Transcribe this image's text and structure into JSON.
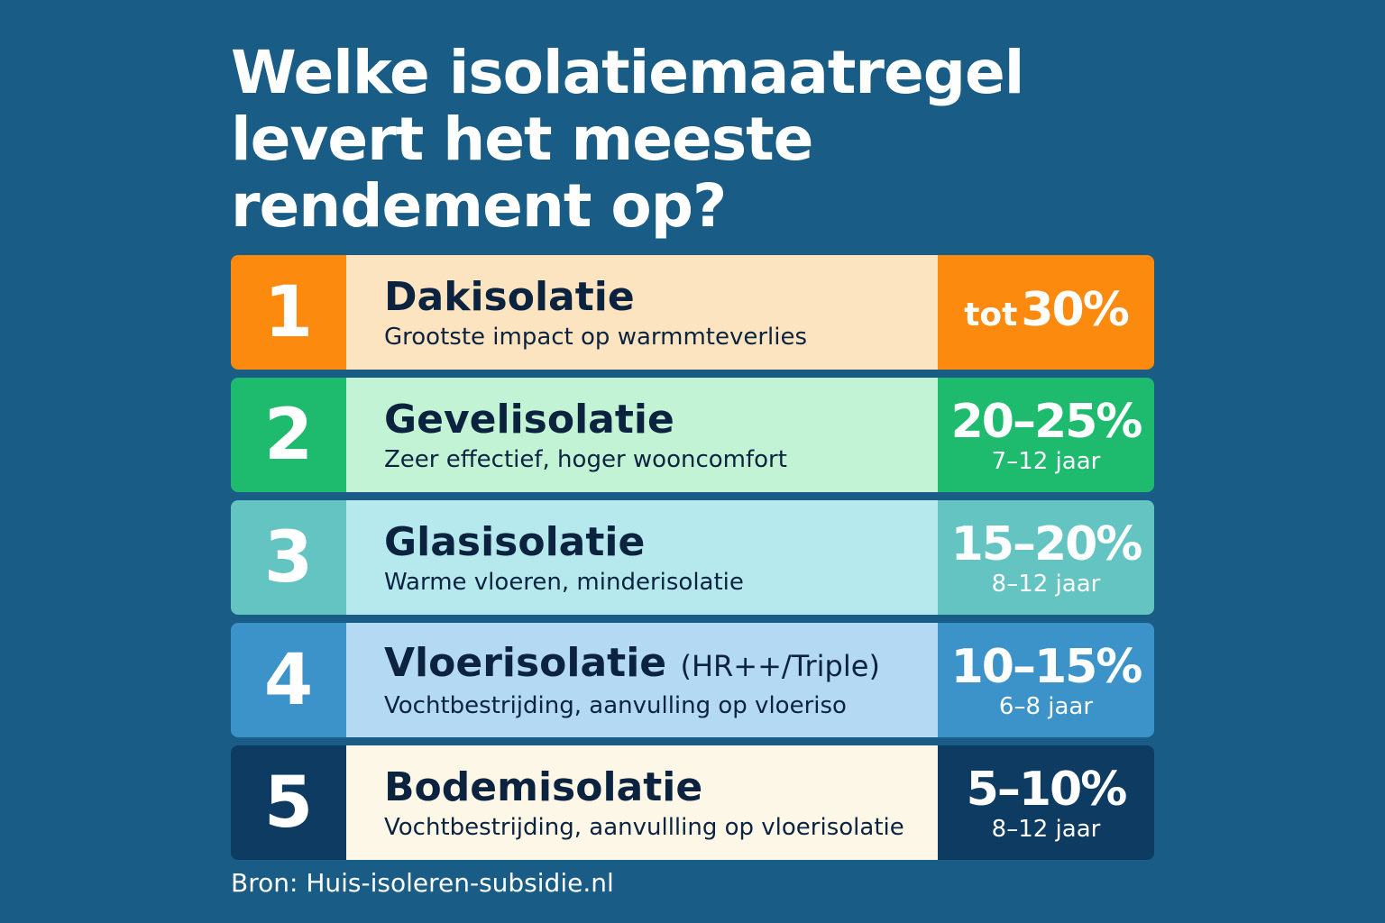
{
  "title": {
    "line1": "Welke isolatiemaatregel",
    "line2": "levert het meeste",
    "line3": "rendement op?"
  },
  "colors": {
    "background": "#195c86",
    "text_dark": "#0c2340",
    "row1_accent": "#fb8a0e",
    "row1_body": "#fde4c0",
    "row2_accent": "#1ebb6e",
    "row2_body": "#c3f3d5",
    "row3_accent": "#63c4c2",
    "row3_body": "#b5e9ee",
    "row4_accent": "#3c93c9",
    "row4_body": "#b3d9f3",
    "row5_accent": "#0e3b62",
    "row5_body": "#fdf7e8"
  },
  "rows": [
    {
      "rank": "1",
      "name": "Dakisolatie",
      "name_suffix": "",
      "description": "Grootste impact op warmmteverlies",
      "value_prefix": "tot",
      "value": "30%",
      "years": ""
    },
    {
      "rank": "2",
      "name": "Gevelisolatie",
      "name_suffix": "",
      "description": "Zeer effectief, hoger wooncomfort",
      "value_prefix": "",
      "value": "20–25%",
      "years": "7–12 jaar"
    },
    {
      "rank": "3",
      "name": "Glasisolatie",
      "name_suffix": "",
      "description": "Warme vloeren, minderisolatie",
      "value_prefix": "",
      "value": "15–20%",
      "years": "8–12 jaar"
    },
    {
      "rank": "4",
      "name": "Vloerisolatie",
      "name_suffix": "(HR++/Triple)",
      "description": "Vochtbestrijding, aanvulling op vloeriso",
      "value_prefix": "",
      "value": "10–15%",
      "years": "6–8 jaar"
    },
    {
      "rank": "5",
      "name": "Bodemisolatie",
      "name_suffix": "",
      "description": "Vochtbestrijding, aanvullling op vloerisolatie",
      "value_prefix": "",
      "value": "5–10%",
      "years": "8–12 jaar"
    }
  ],
  "source": "Bron: Huis-isoleren-subsidie.nl"
}
